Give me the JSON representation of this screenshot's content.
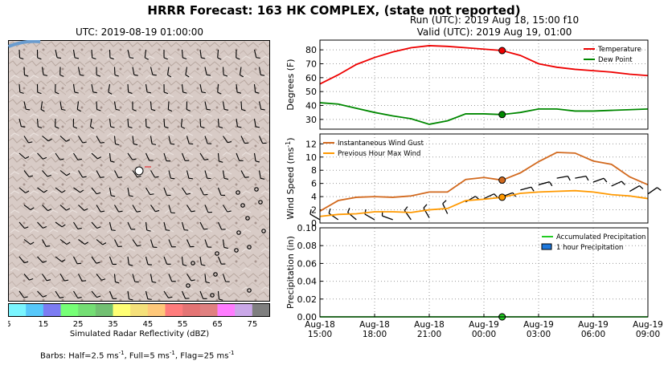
{
  "title": "HRRR Forecast: 163 HK COMPLEX, (state not reported)",
  "map": {
    "title": "UTC: 2019-08-19 01:00:00",
    "colorbar": {
      "label": "Simulated Radar Reflectivity (dBZ)",
      "ticks": [
        "5",
        "15",
        "25",
        "35",
        "45",
        "55",
        "65",
        "75"
      ],
      "colors": [
        "#7af5ff",
        "#57c8fa",
        "#7c7cf2",
        "#76ff76",
        "#74de74",
        "#72c072",
        "#ffff74",
        "#f5e07a",
        "#ffc87a",
        "#ff7c7c",
        "#e47474",
        "#e08080",
        "#ff7cff",
        "#caa8e8",
        "#7f7f7f"
      ]
    },
    "barbs_note": {
      "prefix": "Barbs: Half=2.5 ms",
      "mid1": ", Full=5 ms",
      "mid2": ", Flag=25 ms",
      "sup": "-1"
    }
  },
  "run_header": {
    "line1": "Run (UTC): 2019 Aug 18, 15:00 f10",
    "line2": "Valid (UTC): 2019 Aug 19, 01:00"
  },
  "chart_data": [
    {
      "type": "line",
      "ylabel": "Degrees (F)",
      "ylim": [
        23,
        87
      ],
      "yticks": [
        30,
        40,
        50,
        60,
        70,
        80
      ],
      "xlim": [
        0,
        18
      ],
      "marker_x": 10,
      "legend": "top-right",
      "series": [
        {
          "name": "Temperature",
          "color": "#ee0000",
          "marker": "#ee0000",
          "x": [
            0,
            1,
            2,
            3,
            4,
            5,
            6,
            7,
            8,
            9,
            10,
            11,
            12,
            13,
            14,
            15,
            16,
            17,
            18
          ],
          "y": [
            55.5,
            62,
            69.5,
            74.5,
            78.5,
            81.5,
            83,
            82.5,
            81.5,
            80.5,
            79.5,
            76,
            70,
            67.5,
            66,
            65,
            64,
            62.5,
            61.5
          ]
        },
        {
          "name": "Dew Point",
          "color": "#008800",
          "marker": "#008800",
          "x": [
            0,
            1,
            2,
            3,
            4,
            5,
            6,
            7,
            8,
            9,
            10,
            11,
            12,
            13,
            14,
            15,
            16,
            17,
            18
          ],
          "y": [
            42,
            41,
            38,
            35,
            32.5,
            30.5,
            26.5,
            29,
            34,
            34,
            33.5,
            35,
            37.5,
            37.5,
            36,
            36,
            36.5,
            37,
            37.5
          ]
        }
      ]
    },
    {
      "type": "line",
      "ylabel": "Wind Speed (ms-1)",
      "ylim": [
        0,
        13.5
      ],
      "yticks": [
        0,
        2,
        4,
        6,
        8,
        10,
        12
      ],
      "xlim": [
        0,
        18
      ],
      "marker_x": 10,
      "legend": "top-left",
      "series": [
        {
          "name": "Instantaneous Wind Gust",
          "color": "#d2691e",
          "marker": "#d2691e",
          "x": [
            0,
            1,
            2,
            3,
            4,
            5,
            6,
            7,
            8,
            9,
            10,
            11,
            12,
            13,
            14,
            15,
            16,
            17,
            18
          ],
          "y": [
            1.8,
            3.4,
            3.9,
            4.0,
            3.9,
            4.1,
            4.7,
            4.7,
            6.6,
            6.9,
            6.5,
            7.6,
            9.3,
            10.7,
            10.6,
            9.4,
            8.9,
            7.0,
            5.8
          ]
        },
        {
          "name": "Previous Hour Max Wind",
          "color": "#ff9900",
          "marker": "#ff9900",
          "x": [
            0,
            1,
            2,
            3,
            4,
            5,
            6,
            7,
            8,
            9,
            10,
            11,
            12,
            13,
            14,
            15,
            16,
            17,
            18
          ],
          "y": [
            1.0,
            1.3,
            1.4,
            1.7,
            1.7,
            1.6,
            2.0,
            2.2,
            3.4,
            3.6,
            3.9,
            4.5,
            4.7,
            4.8,
            4.9,
            4.7,
            4.3,
            4.1,
            3.7
          ]
        }
      ],
      "barbs": [
        {
          "x": 0,
          "y": 0.5,
          "angle": -150
        },
        {
          "x": 1,
          "y": 0.5,
          "angle": -145
        },
        {
          "x": 2,
          "y": 0.5,
          "angle": -140
        },
        {
          "x": 3,
          "y": 0.5,
          "angle": -150
        },
        {
          "x": 4,
          "y": 0.5,
          "angle": -160
        },
        {
          "x": 5,
          "y": 0.5,
          "angle": -125
        },
        {
          "x": 6,
          "y": 0.8,
          "angle": -120
        },
        {
          "x": 7,
          "y": 1.4,
          "angle": -115
        },
        {
          "x": 8,
          "y": 3.2,
          "angle": -30
        },
        {
          "x": 9,
          "y": 3.7,
          "angle": -25
        },
        {
          "x": 10,
          "y": 4.0,
          "angle": -20
        },
        {
          "x": 11,
          "y": 5.0,
          "angle": -15
        },
        {
          "x": 12,
          "y": 5.8,
          "angle": -15
        },
        {
          "x": 13,
          "y": 6.8,
          "angle": -10
        },
        {
          "x": 14,
          "y": 6.8,
          "angle": -10
        },
        {
          "x": 15,
          "y": 6.2,
          "angle": -20
        },
        {
          "x": 16,
          "y": 5.6,
          "angle": -25
        },
        {
          "x": 17,
          "y": 4.8,
          "angle": -30
        },
        {
          "x": 18,
          "y": 4.4,
          "angle": -35
        }
      ]
    },
    {
      "type": "line",
      "ylabel": "Precipitation (in)",
      "ylim": [
        0,
        0.1
      ],
      "yticks": [
        "0.00",
        "0.02",
        "0.04",
        "0.06",
        "0.08",
        "0.10"
      ],
      "xlim": [
        0,
        18
      ],
      "marker_x": 10,
      "legend": "top-right",
      "xticks": [
        {
          "x": 0,
          "l1": "Aug-18",
          "l2": "15:00"
        },
        {
          "x": 3,
          "l1": "Aug-18",
          "l2": "18:00"
        },
        {
          "x": 6,
          "l1": "Aug-18",
          "l2": "21:00"
        },
        {
          "x": 9,
          "l1": "Aug-19",
          "l2": "00:00"
        },
        {
          "x": 12,
          "l1": "Aug-19",
          "l2": "03:00"
        },
        {
          "x": 15,
          "l1": "Aug-19",
          "l2": "06:00"
        },
        {
          "x": 18,
          "l1": "Aug-19",
          "l2": "09:00"
        }
      ],
      "series": [
        {
          "name": "Accumulated Precipitation",
          "color": "#22cc22",
          "x": [
            0,
            1,
            2,
            3,
            4,
            5,
            6,
            7,
            8,
            9,
            10,
            11,
            12,
            13,
            14,
            15,
            16,
            17,
            18
          ],
          "y": [
            0,
            0,
            0,
            0,
            0,
            0,
            0,
            0,
            0,
            0,
            0,
            0,
            0,
            0,
            0,
            0,
            0,
            0,
            0
          ]
        },
        {
          "name": "1 hour Precipitation",
          "color": "#1e78dc",
          "kind": "bar",
          "x": [
            0,
            1,
            2,
            3,
            4,
            5,
            6,
            7,
            8,
            9,
            10,
            11,
            12,
            13,
            14,
            15,
            16,
            17,
            18
          ],
          "y": [
            0,
            0,
            0,
            0,
            0,
            0,
            0,
            0,
            0,
            0,
            0,
            0,
            0,
            0,
            0,
            0,
            0,
            0,
            0
          ]
        }
      ]
    }
  ]
}
